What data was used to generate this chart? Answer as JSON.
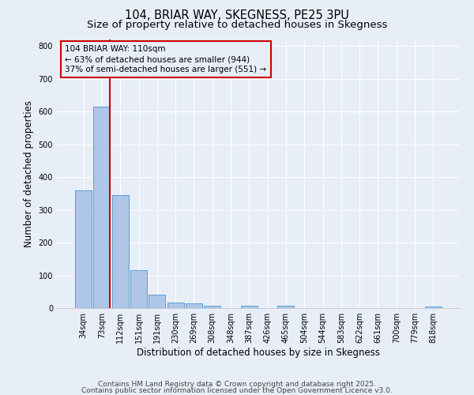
{
  "title": "104, BRIAR WAY, SKEGNESS, PE25 3PU",
  "subtitle": "Size of property relative to detached houses in Skegness",
  "xlabel": "Distribution of detached houses by size in Skegness",
  "ylabel": "Number of detached properties",
  "bar_labels": [
    "34sqm",
    "73sqm",
    "112sqm",
    "151sqm",
    "191sqm",
    "230sqm",
    "269sqm",
    "308sqm",
    "348sqm",
    "387sqm",
    "426sqm",
    "465sqm",
    "504sqm",
    "544sqm",
    "583sqm",
    "622sqm",
    "661sqm",
    "700sqm",
    "779sqm",
    "818sqm"
  ],
  "bar_values": [
    360,
    614,
    345,
    116,
    40,
    18,
    14,
    8,
    0,
    7,
    0,
    7,
    0,
    0,
    0,
    0,
    0,
    0,
    0,
    6
  ],
  "bar_color": "#aec6e8",
  "bar_edge_color": "#5a9fd4",
  "background_color": "#e8eef8",
  "grid_color": "#ffffff",
  "vline_color": "#cc0000",
  "annotation_text": "104 BRIAR WAY: 110sqm\n← 63% of detached houses are smaller (944)\n37% of semi-detached houses are larger (551) →",
  "annotation_box_color": "#cc0000",
  "ylim": [
    0,
    820
  ],
  "yticks": [
    0,
    100,
    200,
    300,
    400,
    500,
    600,
    700,
    800
  ],
  "footer1": "Contains HM Land Registry data © Crown copyright and database right 2025.",
  "footer2": "Contains public sector information licensed under the Open Government Licence v3.0.",
  "title_fontsize": 10.5,
  "subtitle_fontsize": 9.5,
  "tick_fontsize": 7,
  "ylabel_fontsize": 8.5,
  "xlabel_fontsize": 8.5,
  "footer_fontsize": 6.5,
  "ann_fontsize": 7.5
}
